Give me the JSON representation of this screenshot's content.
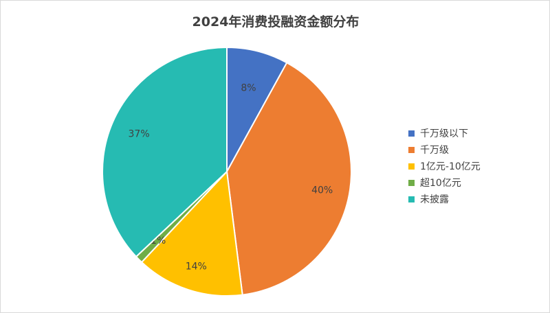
{
  "chart_data": {
    "type": "pie",
    "title": "2024年消费投融资金额分布",
    "categories": [
      "千万级以下",
      "千万级",
      "1亿元-10亿元",
      "超10亿元",
      "未披露"
    ],
    "values": [
      8,
      40,
      14,
      1,
      37
    ],
    "labels": [
      "8%",
      "40%",
      "14%",
      "1%",
      "37%"
    ],
    "colors": [
      "#4472C4",
      "#ED7D31",
      "#FFC000",
      "#70AD47",
      "#26BBB2"
    ],
    "start_angle": "12 o'clock",
    "direction": "clockwise",
    "legend_position": "right"
  }
}
